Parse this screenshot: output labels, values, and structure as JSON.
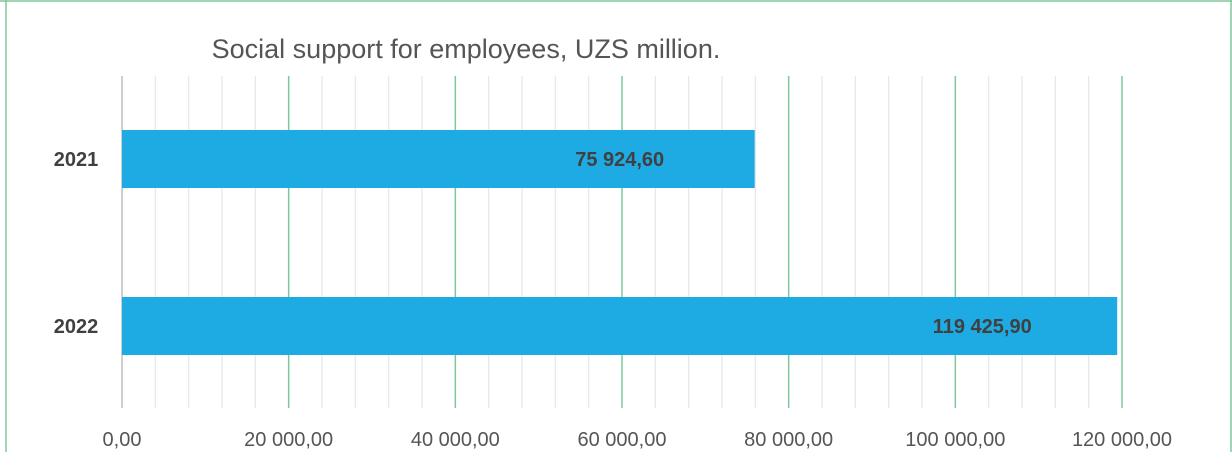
{
  "chart_data": {
    "type": "bar",
    "orientation": "horizontal",
    "title": "Social support for employees, UZS million.",
    "categories": [
      "2021",
      "2022"
    ],
    "values": [
      75924.6,
      119425.9
    ],
    "data_labels": [
      "75 924,60",
      "119 425,90"
    ],
    "xlim": [
      0,
      120000
    ],
    "x_ticks": [
      0,
      20000,
      40000,
      60000,
      80000,
      100000,
      120000
    ],
    "x_tick_labels": [
      "0,00",
      "20 000,00",
      "40 000,00",
      "60 000,00",
      "80 000,00",
      "100 000,00",
      "120 000,00"
    ],
    "minor_step": 4000,
    "grid": true,
    "legend": "none",
    "colors": {
      "bar": "#1eabe3",
      "major_grid": "#7fc79a",
      "minor_grid": "#e6e6e6",
      "frame": "#7fc79a",
      "text": "#555555",
      "label_text": "#404040"
    }
  }
}
